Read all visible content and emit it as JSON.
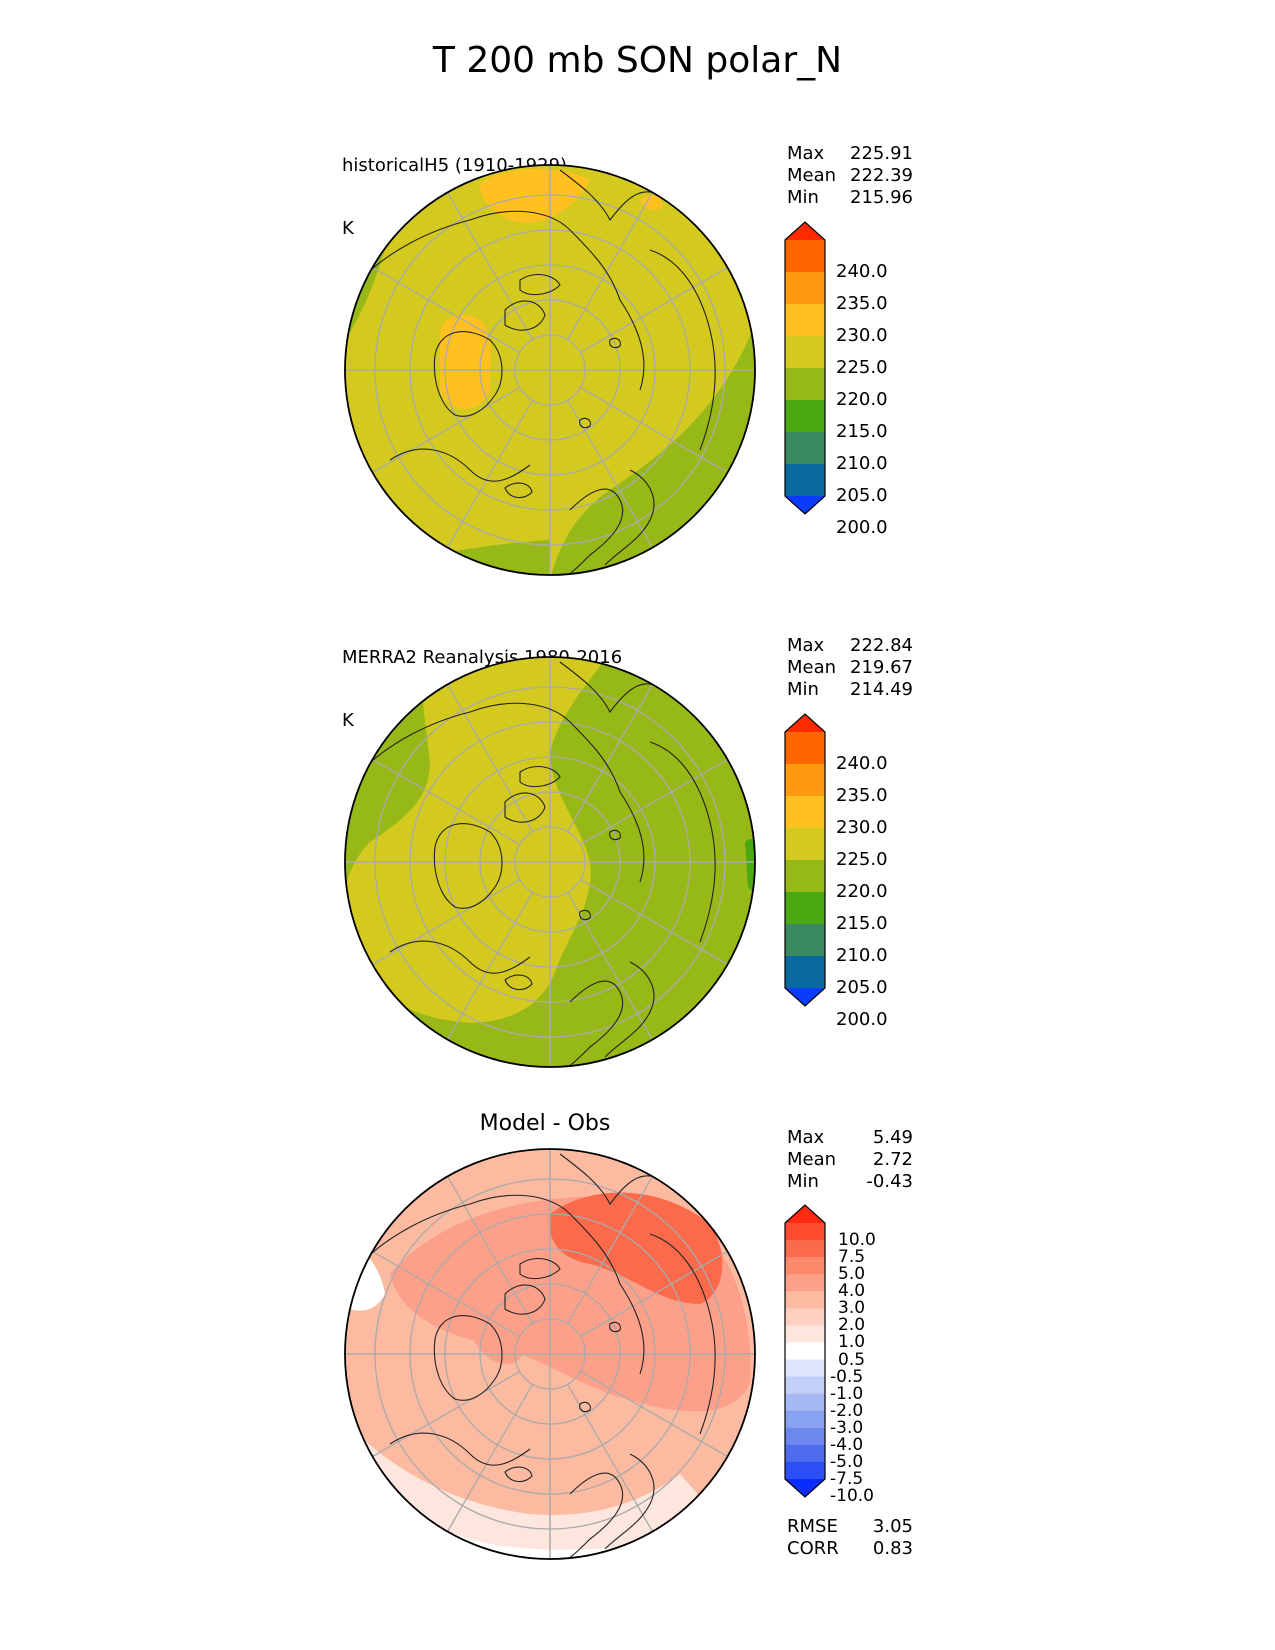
{
  "title": "T 200 mb SON polar_N",
  "panels": [
    {
      "id": "model",
      "title_line1": "historicalH5 (1910-1929)",
      "title_line2": "K",
      "stats": [
        {
          "label": "Max",
          "value": "225.91"
        },
        {
          "label": "Mean",
          "value": "222.39"
        },
        {
          "label": "Min",
          "value": "215.96"
        }
      ],
      "colorbar": {
        "ticks": [
          "240.0",
          "235.0",
          "230.0",
          "225.0",
          "220.0",
          "215.0",
          "210.0",
          "205.0",
          "200.0"
        ],
        "colors": [
          "#ff2a00",
          "#ff6600",
          "#ff9a10",
          "#ffc020",
          "#d4c91f",
          "#96b918",
          "#4aa812",
          "#3a8a60",
          "#0a6aa0",
          "#0a3cff"
        ]
      }
    },
    {
      "id": "obs",
      "title_line1": "MERRA2 Reanalysis 1980-2016",
      "title_line2": "K",
      "stats": [
        {
          "label": "Max",
          "value": "222.84"
        },
        {
          "label": "Mean",
          "value": "219.67"
        },
        {
          "label": "Min",
          "value": "214.49"
        }
      ],
      "colorbar": {
        "ticks": [
          "240.0",
          "235.0",
          "230.0",
          "225.0",
          "220.0",
          "215.0",
          "210.0",
          "205.0",
          "200.0"
        ],
        "colors": [
          "#ff2a00",
          "#ff6600",
          "#ff9a10",
          "#ffc020",
          "#d4c91f",
          "#96b918",
          "#4aa812",
          "#3a8a60",
          "#0a6aa0",
          "#0a3cff"
        ]
      }
    },
    {
      "id": "diff",
      "title_center": "Model - Obs",
      "stats": [
        {
          "label": "Max",
          "value": "5.49"
        },
        {
          "label": "Mean",
          "value": "2.72"
        },
        {
          "label": "Min",
          "value": "-0.43"
        }
      ],
      "colorbar": {
        "ticks": [
          "10.0",
          "7.5",
          "5.0",
          "4.0",
          "3.0",
          "2.0",
          "1.0",
          "0.5",
          "-0.5",
          "-1.0",
          "-2.0",
          "-3.0",
          "-4.0",
          "-5.0",
          "-7.5",
          "-10.0"
        ],
        "colors": [
          "#ff2a10",
          "#ff4a30",
          "#fb6a4a",
          "#fc8a6a",
          "#fca08a",
          "#fcbba1",
          "#fdd0c0",
          "#fde6de",
          "#ffffff",
          "#dde4fb",
          "#c3cff8",
          "#a7b9f5",
          "#8aa2f2",
          "#6c88ef",
          "#4d6cf0",
          "#2b4ef5",
          "#0a2cff"
        ]
      },
      "bottom_stats": [
        {
          "label": "RMSE",
          "value": "3.05"
        },
        {
          "label": "CORR",
          "value": "0.83"
        }
      ]
    }
  ],
  "map_colors": {
    "model_bg": "#d4c91f",
    "model_green": "#96b918",
    "model_orange": "#ffc020",
    "obs_bg": "#96b918",
    "obs_yellow": "#d4c91f",
    "obs_dark": "#4aa812",
    "diff_bg": "#fcbba1",
    "diff_mid": "#fca08a",
    "diff_hi": "#fb6a4a",
    "diff_low": "#fde6de",
    "diff_white": "#ffffff",
    "grid": "#aaaaaa",
    "coast": "#222222"
  }
}
